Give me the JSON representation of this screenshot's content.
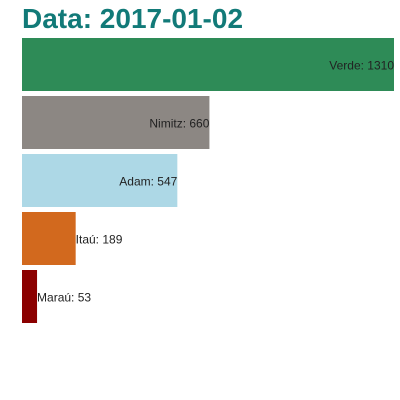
{
  "chart_data": {
    "type": "bar",
    "orientation": "horizontal",
    "title": "Data: 2017-01-02",
    "categories": [
      "Verde",
      "Nimitz",
      "Adam",
      "Itaú",
      "Maraú"
    ],
    "values": [
      1310,
      660,
      547,
      189,
      53
    ],
    "colors": [
      "#2e8b57",
      "#8c8783",
      "#add8e6",
      "#d2691e",
      "#8b0000"
    ],
    "data_label_format": "{category}: {value}",
    "xlim": [
      0,
      1310
    ],
    "grid": false,
    "legend": "none"
  }
}
